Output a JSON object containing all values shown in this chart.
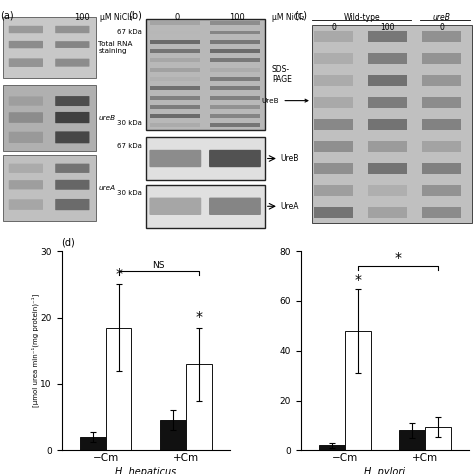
{
  "nicl2_label": "μM NiCl₂",
  "hep_title": "H. hepaticus",
  "pyl_title": "H. pylori",
  "xlabel_cm_neg": "−Cm",
  "xlabel_cm_pos": "+Cm",
  "ylabel": "[μmol urea min⁻¹(mg protein)⁻¹]",
  "hep_black": [
    2.0,
    4.5
  ],
  "hep_white": [
    18.5,
    13.0
  ],
  "hep_black_err": [
    0.8,
    1.5
  ],
  "hep_white_err": [
    6.5,
    5.5
  ],
  "hep_ylim": [
    0,
    30
  ],
  "hep_yticks": [
    0,
    10,
    20,
    30
  ],
  "pyl_black": [
    2.0,
    8.0
  ],
  "pyl_white": [
    48.0,
    9.5
  ],
  "pyl_black_err": [
    1.0,
    3.0
  ],
  "pyl_white_err": [
    17.0,
    4.0
  ],
  "pyl_ylim": [
    0,
    80
  ],
  "pyl_yticks": [
    0,
    20,
    40,
    60,
    80
  ],
  "bar_width": 0.32,
  "black_color": "#111111",
  "white_color": "#ffffff",
  "edge_color": "#111111"
}
